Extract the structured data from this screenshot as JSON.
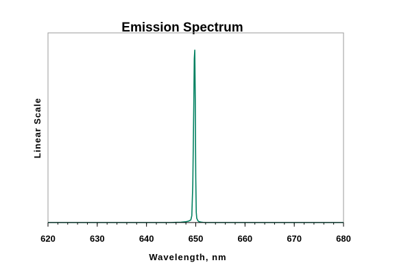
{
  "chart_data": {
    "type": "line",
    "title": "Emission Spectrum",
    "xlabel": "Wavelength, nm",
    "ylabel": "Linear Scale",
    "xlim": [
      620,
      680
    ],
    "ylim": [
      0,
      1.1
    ],
    "x_ticks": [
      "620",
      "630",
      "640",
      "650",
      "660",
      "670",
      "680"
    ],
    "x_minor_step": 2,
    "y_ticks_shown": false,
    "grid": false,
    "legend": "none",
    "series": [
      {
        "color": "#008060",
        "x": [
          620,
          630,
          640,
          645,
          647,
          648,
          648.5,
          649,
          649.2,
          649.4,
          649.6,
          649.7,
          649.8,
          649.9,
          650.0,
          650.1,
          650.2,
          650.4,
          650.6,
          651,
          651.5,
          652,
          655,
          660,
          670,
          680
        ],
        "y": [
          0,
          0,
          0,
          0,
          0.002,
          0.005,
          0.008,
          0.015,
          0.04,
          0.22,
          0.68,
          0.95,
          1.0,
          0.72,
          0.26,
          0.06,
          0.025,
          0.012,
          0.006,
          0.003,
          0.001,
          0,
          0,
          0,
          0,
          0
        ]
      }
    ]
  }
}
